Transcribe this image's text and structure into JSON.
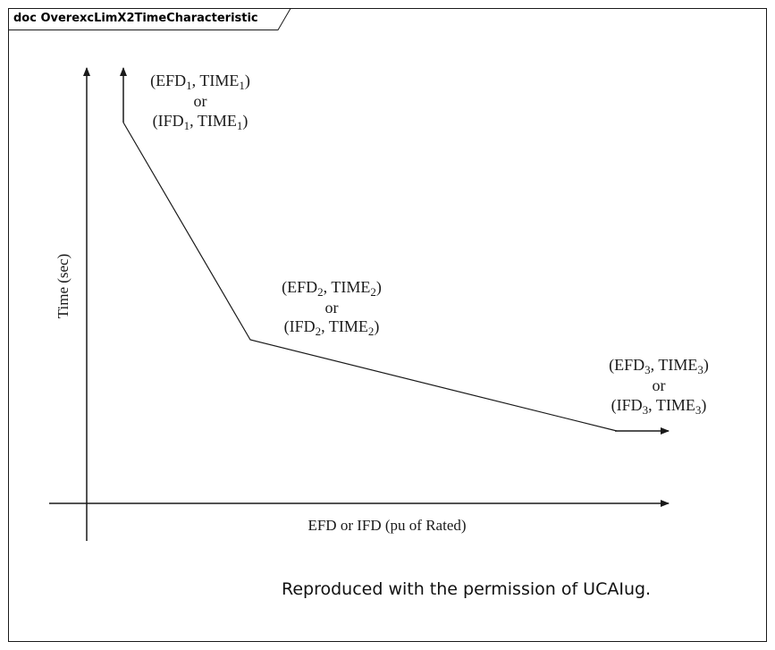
{
  "frame": {
    "title": "doc OverexcLimX2TimeCharacteristic"
  },
  "diagram": {
    "y_axis_label": "Time (sec)",
    "x_axis_label": "EFD or IFD (pu of Rated)",
    "points": [
      {
        "line1": {
          "pre": "(EFD",
          "sub1": "1",
          "mid": ", TIME",
          "sub2": "1",
          "post": ")"
        },
        "or": "or",
        "line2": {
          "pre": "(IFD",
          "sub1": "1",
          "mid": ", TIME",
          "sub2": "1",
          "post": ")"
        }
      },
      {
        "line1": {
          "pre": "(EFD",
          "sub1": "2",
          "mid": ", TIME",
          "sub2": "2",
          "post": ")"
        },
        "or": "or",
        "line2": {
          "pre": "(IFD",
          "sub1": "2",
          "mid": ", TIME",
          "sub2": "2",
          "post": ")"
        }
      },
      {
        "line1": {
          "pre": "(EFD",
          "sub1": "3",
          "mid": ", TIME",
          "sub2": "3",
          "post": ")"
        },
        "or": "or",
        "line2": {
          "pre": "(IFD",
          "sub1": "3",
          "mid": ", TIME",
          "sub2": "3",
          "post": ")"
        }
      }
    ]
  },
  "caption": "Reproduced with the permission of UCAIug."
}
